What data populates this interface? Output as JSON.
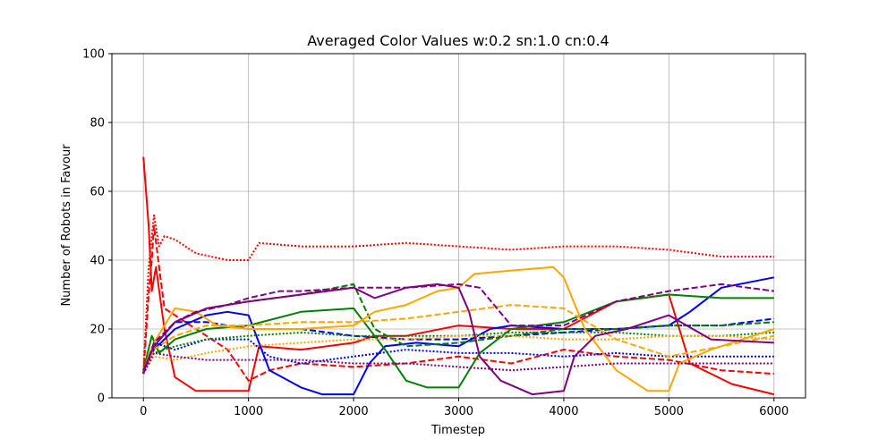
{
  "chart_data": {
    "type": "line",
    "title": "Averaged Color Values w:0.2 sn:1.0 cn:0.4",
    "xlabel": "Timestep",
    "ylabel": "Number of Robots in Favour",
    "xlim": [
      -300,
      6300
    ],
    "ylim": [
      0,
      100
    ],
    "xticks": [
      0,
      1000,
      2000,
      3000,
      4000,
      5000,
      6000
    ],
    "yticks": [
      0,
      20,
      40,
      60,
      80,
      100
    ],
    "grid": true,
    "legend": "none",
    "series": [
      {
        "color": "#ff0000",
        "dash": "solid",
        "x": [
          0,
          50,
          80,
          120,
          200,
          300,
          500,
          700,
          900,
          1000,
          1100,
          1500,
          2000,
          2200,
          2500,
          3000,
          3500,
          4000,
          4500,
          5000,
          5200,
          5600,
          6000
        ],
        "y": [
          70,
          50,
          31,
          38,
          20,
          6,
          2,
          2,
          2,
          2,
          15,
          14,
          16,
          18,
          18,
          21,
          20,
          20,
          28,
          30,
          10,
          4,
          1
        ]
      },
      {
        "color": "#ff0000",
        "dash": "dashed",
        "x": [
          0,
          50,
          80,
          100,
          150,
          200,
          400,
          600,
          800,
          1000,
          1200,
          1500,
          2000,
          2500,
          3000,
          3500,
          4000,
          4500,
          5000,
          5500,
          6000
        ],
        "y": [
          7,
          30,
          40,
          50,
          38,
          26,
          22,
          18,
          14,
          5,
          8,
          10,
          9,
          10,
          12,
          10,
          14,
          12,
          11,
          8,
          7
        ]
      },
      {
        "color": "#ff0000",
        "dash": "dotted",
        "x": [
          0,
          50,
          100,
          150,
          200,
          300,
          500,
          800,
          1000,
          1100,
          1500,
          2000,
          2500,
          3000,
          3500,
          4000,
          4500,
          5000,
          5500,
          6000
        ],
        "y": [
          7,
          38,
          53,
          44,
          47,
          46,
          42,
          40,
          40,
          45,
          44,
          44,
          45,
          44,
          43,
          44,
          44,
          43,
          41,
          41
        ]
      },
      {
        "color": "#0000ff",
        "dash": "solid",
        "x": [
          0,
          100,
          300,
          600,
          800,
          1000,
          1050,
          1200,
          1500,
          1700,
          2000,
          2150,
          2300,
          2600,
          3000,
          3300,
          3500,
          4000,
          4500,
          5000,
          5200,
          5500,
          6000
        ],
        "y": [
          8,
          14,
          20,
          24,
          25,
          24,
          20,
          8,
          3,
          1,
          1,
          10,
          15,
          16,
          15,
          20,
          21,
          20,
          20,
          21,
          25,
          32,
          35
        ]
      },
      {
        "color": "#0000ff",
        "dash": "dashed",
        "x": [
          0,
          100,
          300,
          600,
          1000,
          1500,
          2000,
          2500,
          3000,
          3500,
          4000,
          4500,
          5000,
          5500,
          6000
        ],
        "y": [
          7,
          15,
          22,
          22,
          20,
          20,
          18,
          17,
          17,
          18,
          19,
          20,
          21,
          21,
          23
        ]
      },
      {
        "color": "#0000ff",
        "dash": "dotted",
        "x": [
          0,
          100,
          300,
          600,
          1000,
          1200,
          1500,
          2000,
          2500,
          3000,
          3500,
          4000,
          4500,
          5000,
          5500,
          6000
        ],
        "y": [
          7,
          16,
          14,
          17,
          17,
          12,
          10,
          12,
          14,
          13,
          13,
          12,
          13,
          12,
          12,
          12
        ]
      },
      {
        "color": "#008000",
        "dash": "solid",
        "x": [
          0,
          80,
          150,
          300,
          600,
          1000,
          1500,
          2000,
          2100,
          2300,
          2500,
          2700,
          3000,
          3200,
          3500,
          4000,
          4500,
          5000,
          5500,
          6000
        ],
        "y": [
          8,
          18,
          13,
          17,
          20,
          21,
          25,
          26,
          22,
          14,
          5,
          3,
          3,
          13,
          20,
          22,
          28,
          30,
          29,
          29
        ]
      },
      {
        "color": "#008000",
        "dash": "dashed",
        "x": [
          0,
          100,
          300,
          500,
          800,
          1000,
          1500,
          2000,
          2200,
          2500,
          3000,
          3500,
          4000,
          4500,
          5000,
          5500,
          6000
        ],
        "y": [
          7,
          15,
          22,
          25,
          27,
          28,
          30,
          33,
          20,
          15,
          16,
          18,
          20,
          20,
          21,
          21,
          22
        ]
      },
      {
        "color": "#008000",
        "dash": "dotted",
        "x": [
          0,
          100,
          300,
          600,
          1000,
          1500,
          2000,
          2500,
          3000,
          3500,
          4000,
          4500,
          5000,
          5500,
          6000
        ],
        "y": [
          7,
          13,
          15,
          17,
          18,
          19,
          18,
          18,
          18,
          19,
          19,
          19,
          18,
          18,
          19
        ]
      },
      {
        "color": "#ffa500",
        "dash": "solid",
        "x": [
          0,
          100,
          300,
          500,
          700,
          1000,
          1500,
          2000,
          2200,
          2500,
          2800,
          3000,
          3150,
          3500,
          3900,
          4000,
          4200,
          4500,
          4800,
          5000,
          5100,
          5400,
          6000
        ],
        "y": [
          8,
          16,
          26,
          25,
          21,
          20,
          20,
          21,
          25,
          27,
          31,
          32,
          36,
          37,
          38,
          35,
          20,
          8,
          2,
          2,
          10,
          14,
          20
        ]
      },
      {
        "color": "#ffa500",
        "dash": "dashed",
        "x": [
          0,
          100,
          300,
          600,
          1000,
          1500,
          2000,
          2500,
          3000,
          3500,
          4000,
          4500,
          5000,
          5500,
          6000
        ],
        "y": [
          7,
          14,
          18,
          21,
          21,
          22,
          22,
          23,
          25,
          27,
          26,
          17,
          12,
          15,
          18
        ]
      },
      {
        "color": "#ffa500",
        "dash": "dotted",
        "x": [
          0,
          100,
          300,
          600,
          1000,
          1500,
          2000,
          2500,
          3000,
          3500,
          4000,
          4500,
          5000,
          5500,
          6000
        ],
        "y": [
          7,
          12,
          11,
          13,
          15,
          16,
          17,
          17,
          18,
          18,
          17,
          17,
          18,
          18,
          17
        ]
      },
      {
        "color": "#800080",
        "dash": "solid",
        "x": [
          0,
          100,
          300,
          600,
          1000,
          1500,
          2000,
          2200,
          2500,
          2800,
          3000,
          3100,
          3200,
          3400,
          3700,
          4000,
          4100,
          4300,
          4600,
          5000,
          5400,
          6000
        ],
        "y": [
          8,
          15,
          22,
          26,
          28,
          30,
          32,
          29,
          32,
          33,
          32,
          25,
          12,
          5,
          1,
          2,
          12,
          18,
          20,
          24,
          17,
          16
        ]
      },
      {
        "color": "#800080",
        "dash": "dashed",
        "x": [
          0,
          100,
          300,
          500,
          800,
          1000,
          1300,
          1500,
          2000,
          2500,
          3000,
          3200,
          3500,
          4000,
          4500,
          5000,
          5500,
          6000
        ],
        "y": [
          7,
          16,
          22,
          25,
          27,
          29,
          31,
          31,
          32,
          32,
          33,
          32,
          21,
          21,
          28,
          31,
          33,
          31
        ]
      },
      {
        "color": "#800080",
        "dash": "dotted",
        "x": [
          0,
          100,
          300,
          600,
          1000,
          1500,
          2000,
          2500,
          3000,
          3500,
          4000,
          4500,
          5000,
          5500,
          6000
        ],
        "y": [
          7,
          13,
          12,
          11,
          11,
          11,
          10,
          10,
          9,
          8,
          9,
          10,
          10,
          10,
          10
        ]
      }
    ]
  }
}
